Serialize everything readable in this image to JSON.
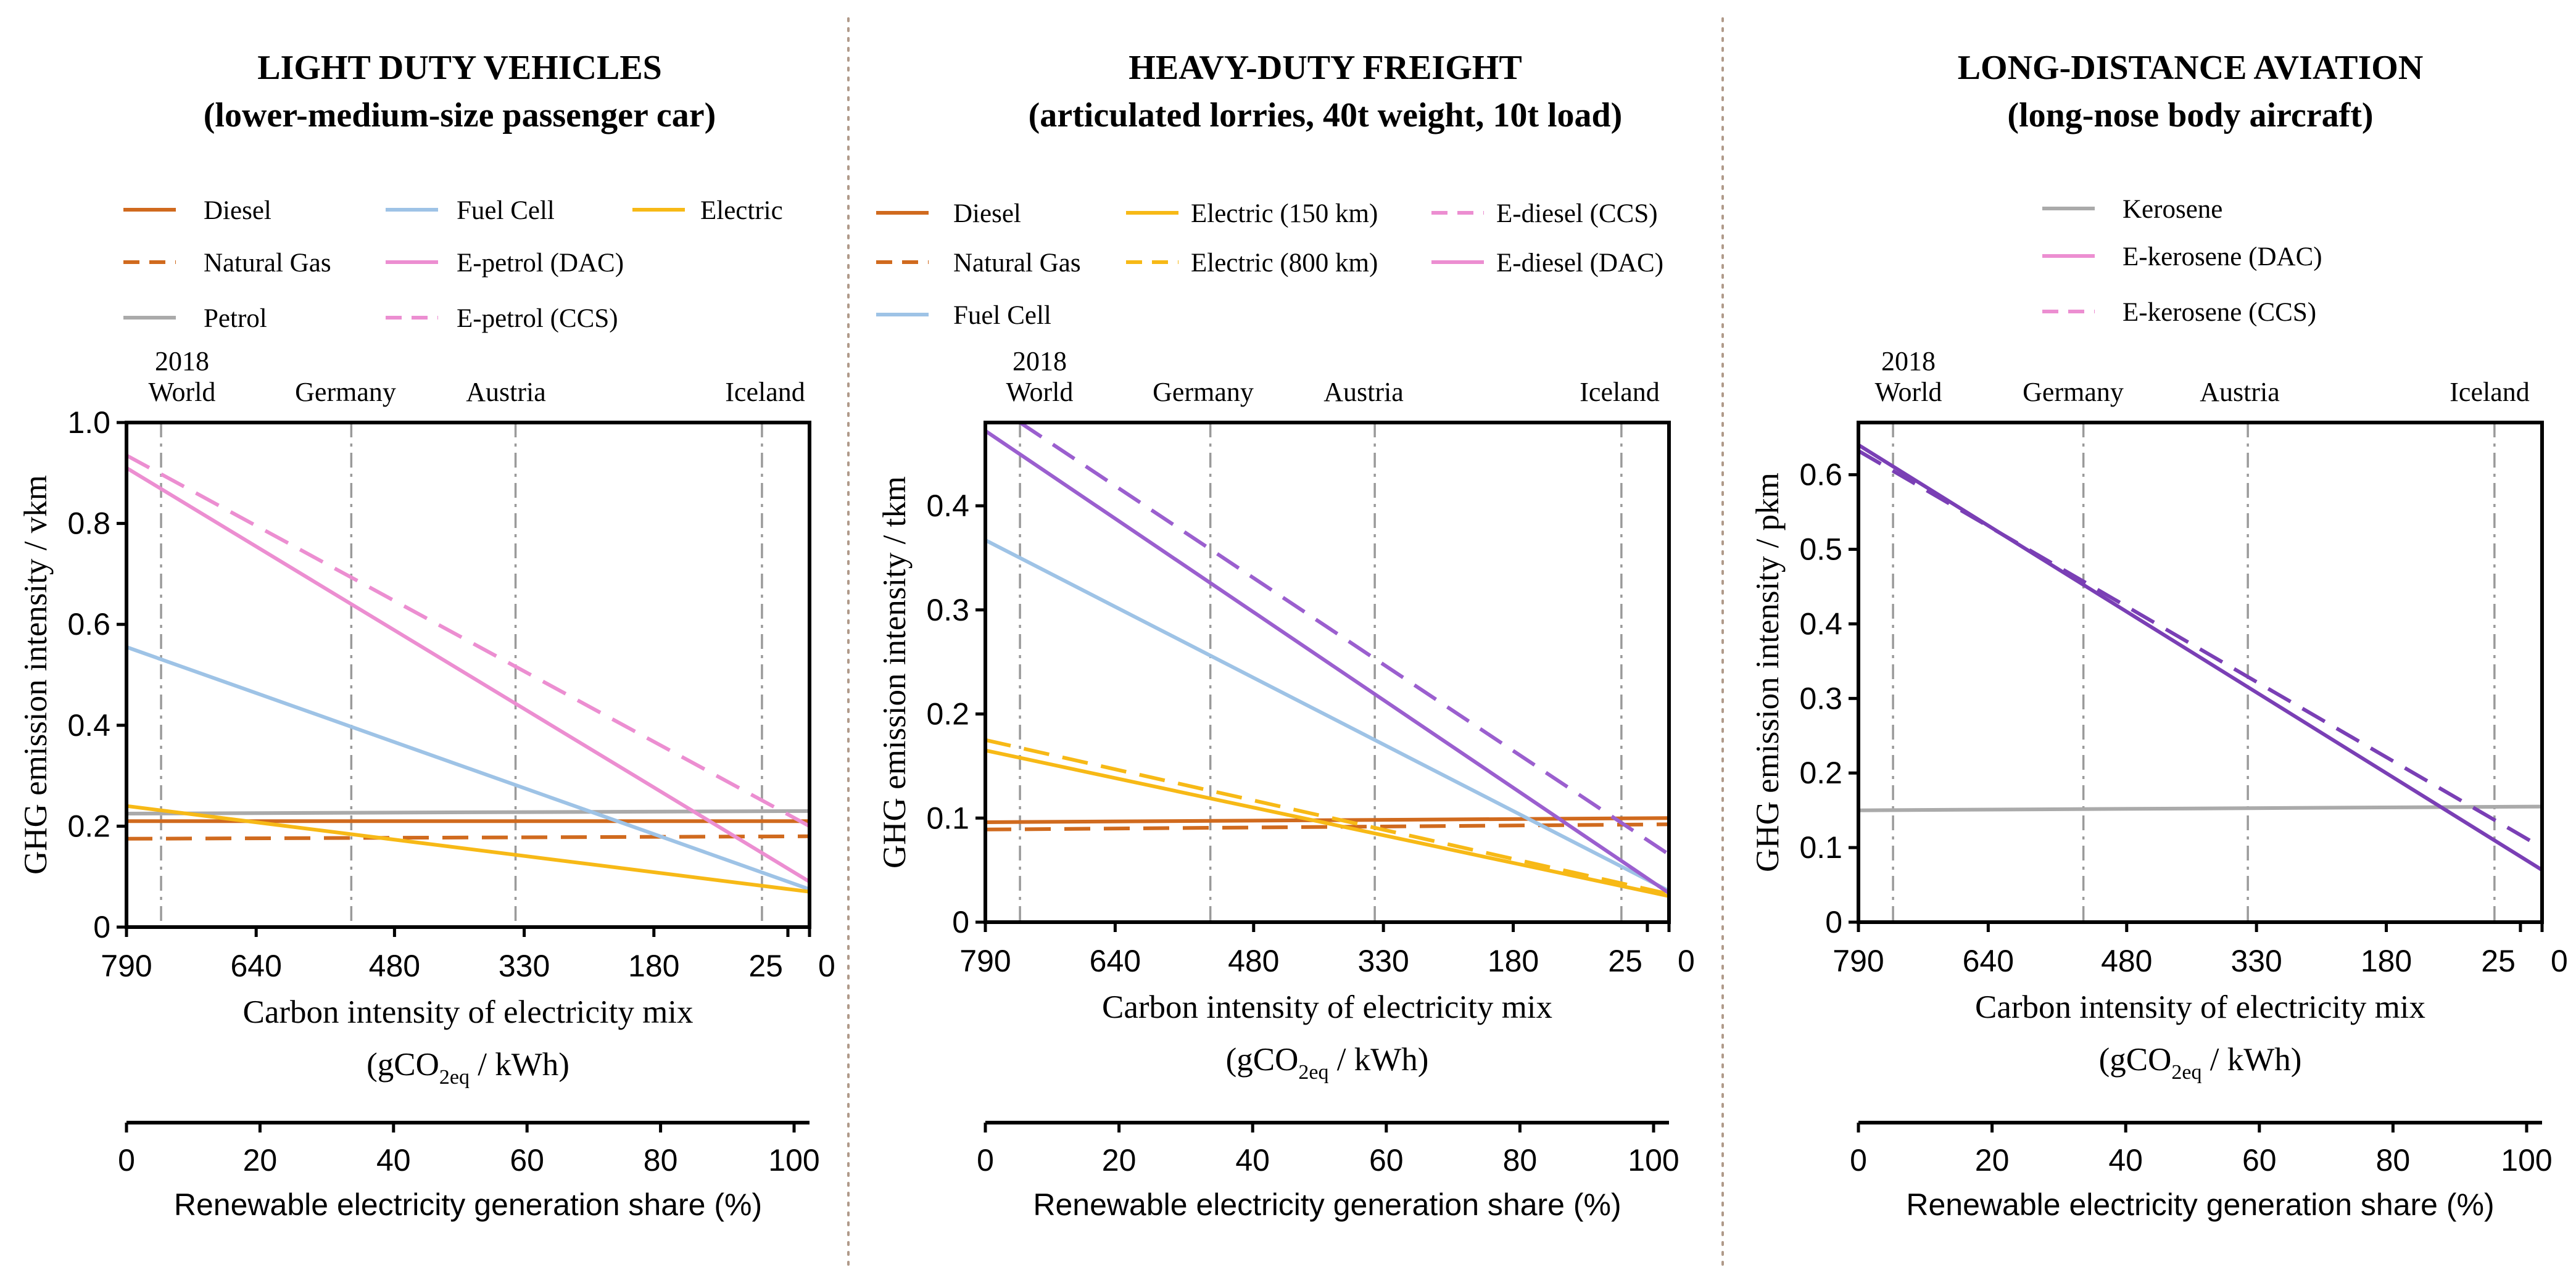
{
  "chart_data": [
    {
      "type": "line",
      "title": "LIGHT DUTY VEHICLES",
      "subtitle": "(lower-medium-size passenger car)",
      "ylabel": "GHG emission intensity / vkm",
      "xlabel": "Carbon intensity of electricity mix",
      "xunit_pre": "(gCO",
      "xunit_sub": "2eq",
      "xunit_post": " / kWh)",
      "xlim": [
        790,
        0
      ],
      "ylim": [
        0,
        1.0
      ],
      "xticks": [
        790,
        640,
        480,
        330,
        180,
        25,
        0
      ],
      "yticks": [
        0,
        0.2,
        0.4,
        0.6,
        0.8,
        1.0
      ],
      "ytick_labels": [
        "0",
        "0.2",
        "0.4",
        "0.6",
        "0.8",
        "1.0"
      ],
      "year_label": "2018",
      "reference_lines": [
        {
          "label": "World",
          "x": 750
        },
        {
          "label": "Germany",
          "x": 530
        },
        {
          "label": "Austria",
          "x": 340
        },
        {
          "label": "Iceland",
          "x": 55
        }
      ],
      "share_axis": {
        "label": "Renewable electricity generation share (%)",
        "ticks": [
          0,
          20,
          40,
          60,
          80,
          100
        ]
      },
      "legend": [
        [
          "Diesel",
          "Natural Gas",
          "Petrol"
        ],
        [
          "Fuel Cell",
          "E-petrol (DAC)",
          "E-petrol (CCS)"
        ],
        [
          "Electric"
        ]
      ],
      "series": [
        {
          "name": "Diesel",
          "color": "#d06a1e",
          "dash": "solid",
          "x": [
            790,
            0
          ],
          "y": [
            0.21,
            0.21
          ]
        },
        {
          "name": "Natural Gas",
          "color": "#d06a1e",
          "dash": "dashed",
          "x": [
            790,
            0
          ],
          "y": [
            0.175,
            0.18
          ]
        },
        {
          "name": "Petrol",
          "color": "#aaaaaa",
          "dash": "solid",
          "x": [
            790,
            0
          ],
          "y": [
            0.225,
            0.23
          ]
        },
        {
          "name": "Fuel Cell",
          "color": "#9ec3e6",
          "dash": "solid",
          "x": [
            790,
            0
          ],
          "y": [
            0.555,
            0.075
          ]
        },
        {
          "name": "Electric",
          "color": "#f7b916",
          "dash": "solid",
          "x": [
            790,
            0
          ],
          "y": [
            0.24,
            0.07
          ]
        },
        {
          "name": "E-petrol (DAC)",
          "color": "#ec8ed1",
          "dash": "solid",
          "x": [
            790,
            0
          ],
          "y": [
            0.91,
            0.09
          ]
        },
        {
          "name": "E-petrol (CCS)",
          "color": "#ec8ed1",
          "dash": "dashed",
          "x": [
            790,
            0
          ],
          "y": [
            0.935,
            0.2
          ]
        }
      ]
    },
    {
      "type": "line",
      "title": "HEAVY-DUTY FREIGHT",
      "subtitle": "(articulated lorries, 40t weight, 10t load)",
      "ylabel": "GHG emission intensity / tkm",
      "xlabel": "Carbon intensity of electricity mix",
      "xunit_pre": "(gCO",
      "xunit_sub": "2eq",
      "xunit_post": " / kWh)",
      "xlim": [
        790,
        0
      ],
      "ylim": [
        0,
        0.48
      ],
      "xticks": [
        790,
        640,
        480,
        330,
        180,
        25,
        0
      ],
      "yticks": [
        0,
        0.1,
        0.2,
        0.3,
        0.4
      ],
      "ytick_labels": [
        "0",
        "0.1",
        "0.2",
        "0.3",
        "0.4"
      ],
      "year_label": "2018",
      "reference_lines": [
        {
          "label": "World",
          "x": 750
        },
        {
          "label": "Germany",
          "x": 530
        },
        {
          "label": "Austria",
          "x": 340
        },
        {
          "label": "Iceland",
          "x": 55
        }
      ],
      "share_axis": {
        "label": "Renewable electricity generation share (%)",
        "ticks": [
          0,
          20,
          40,
          60,
          80,
          100
        ]
      },
      "legend": [
        [
          "Diesel",
          "Natural Gas",
          "Fuel Cell"
        ],
        [
          "Electric (150 km)",
          "Electric (800 km)"
        ],
        [
          "E-diesel (CCS)",
          "E-diesel (DAC)"
        ]
      ],
      "series": [
        {
          "name": "Diesel",
          "color": "#d06a1e",
          "dash": "solid",
          "x": [
            790,
            0
          ],
          "y": [
            0.096,
            0.1
          ]
        },
        {
          "name": "Natural Gas",
          "color": "#d06a1e",
          "dash": "dashed",
          "x": [
            790,
            0
          ],
          "y": [
            0.089,
            0.094
          ]
        },
        {
          "name": "Fuel Cell",
          "color": "#9ec3e6",
          "dash": "solid",
          "x": [
            790,
            0
          ],
          "y": [
            0.367,
            0.03
          ]
        },
        {
          "name": "Electric (150 km)",
          "color": "#f7b916",
          "dash": "solid",
          "x": [
            790,
            0
          ],
          "y": [
            0.165,
            0.025
          ]
        },
        {
          "name": "Electric (800 km)",
          "color": "#f7b916",
          "dash": "dashed",
          "x": [
            790,
            0
          ],
          "y": [
            0.175,
            0.027
          ]
        },
        {
          "name": "E-diesel (DAC)",
          "color": "#9b5fcf",
          "dash": "solid",
          "x": [
            790,
            0
          ],
          "y": [
            0.472,
            0.028
          ]
        },
        {
          "name": "E-diesel (CCS)",
          "color": "#9b5fcf",
          "dash": "dashed",
          "x": [
            750,
            0
          ],
          "y": [
            0.48,
            0.065
          ]
        }
      ]
    },
    {
      "type": "line",
      "title": "LONG-DISTANCE AVIATION",
      "subtitle": "(long-nose body aircraft)",
      "ylabel": "GHG emission intensity / pkm",
      "xlabel": "Carbon intensity of electricity mix",
      "xunit_pre": "(gCO",
      "xunit_sub": "2eq",
      "xunit_post": " / kWh)",
      "xlim": [
        790,
        0
      ],
      "ylim": [
        0,
        0.67
      ],
      "xticks": [
        790,
        640,
        480,
        330,
        180,
        25,
        0
      ],
      "yticks": [
        0,
        0.1,
        0.2,
        0.3,
        0.4,
        0.5,
        0.6
      ],
      "ytick_labels": [
        "0",
        "0.1",
        "0.2",
        "0.3",
        "0.4",
        "0.5",
        "0.6"
      ],
      "year_label": "2018",
      "reference_lines": [
        {
          "label": "World",
          "x": 750
        },
        {
          "label": "Germany",
          "x": 530
        },
        {
          "label": "Austria",
          "x": 340
        },
        {
          "label": "Iceland",
          "x": 55
        }
      ],
      "share_axis": {
        "label": "Renewable electricity generation share (%)",
        "ticks": [
          0,
          20,
          40,
          60,
          80,
          100
        ]
      },
      "legend": [
        [
          "Kerosene",
          "E-kerosene (DAC)",
          "E-kerosene (CCS)"
        ]
      ],
      "series": [
        {
          "name": "Kerosene",
          "color": "#aaaaaa",
          "dash": "solid",
          "x": [
            790,
            0
          ],
          "y": [
            0.15,
            0.155
          ]
        },
        {
          "name": "E-kerosene (DAC)",
          "color": "#7a3fb5",
          "dash": "solid",
          "x": [
            790,
            0
          ],
          "y": [
            0.64,
            0.07
          ]
        },
        {
          "name": "E-kerosene (CCS)",
          "color": "#7a3fb5",
          "dash": "dashed",
          "x": [
            790,
            0
          ],
          "y": [
            0.632,
            0.1
          ]
        }
      ]
    }
  ],
  "legend_styles": {
    "Diesel": {
      "color": "#d06a1e",
      "dash": "solid"
    },
    "Natural Gas": {
      "color": "#d06a1e",
      "dash": "dashed"
    },
    "Petrol": {
      "color": "#aaaaaa",
      "dash": "solid"
    },
    "Fuel Cell": {
      "color": "#9ec3e6",
      "dash": "solid"
    },
    "Electric": {
      "color": "#f7b916",
      "dash": "solid"
    },
    "E-petrol (DAC)": {
      "color": "#ec8ed1",
      "dash": "solid"
    },
    "E-petrol (CCS)": {
      "color": "#ec8ed1",
      "dash": "dashed"
    },
    "Electric (150 km)": {
      "color": "#f7b916",
      "dash": "solid"
    },
    "Electric (800 km)": {
      "color": "#f7b916",
      "dash": "dashed"
    },
    "E-diesel (CCS)": {
      "color": "#ec8ed1",
      "dash": "dashed"
    },
    "E-diesel (DAC)": {
      "color": "#ec8ed1",
      "dash": "solid"
    },
    "Kerosene": {
      "color": "#aaaaaa",
      "dash": "solid"
    },
    "E-kerosene (DAC)": {
      "color": "#ec8ed1",
      "dash": "solid"
    },
    "E-kerosene (CCS)": {
      "color": "#ec8ed1",
      "dash": "dashed"
    }
  },
  "separator_color": "#b09a8a"
}
